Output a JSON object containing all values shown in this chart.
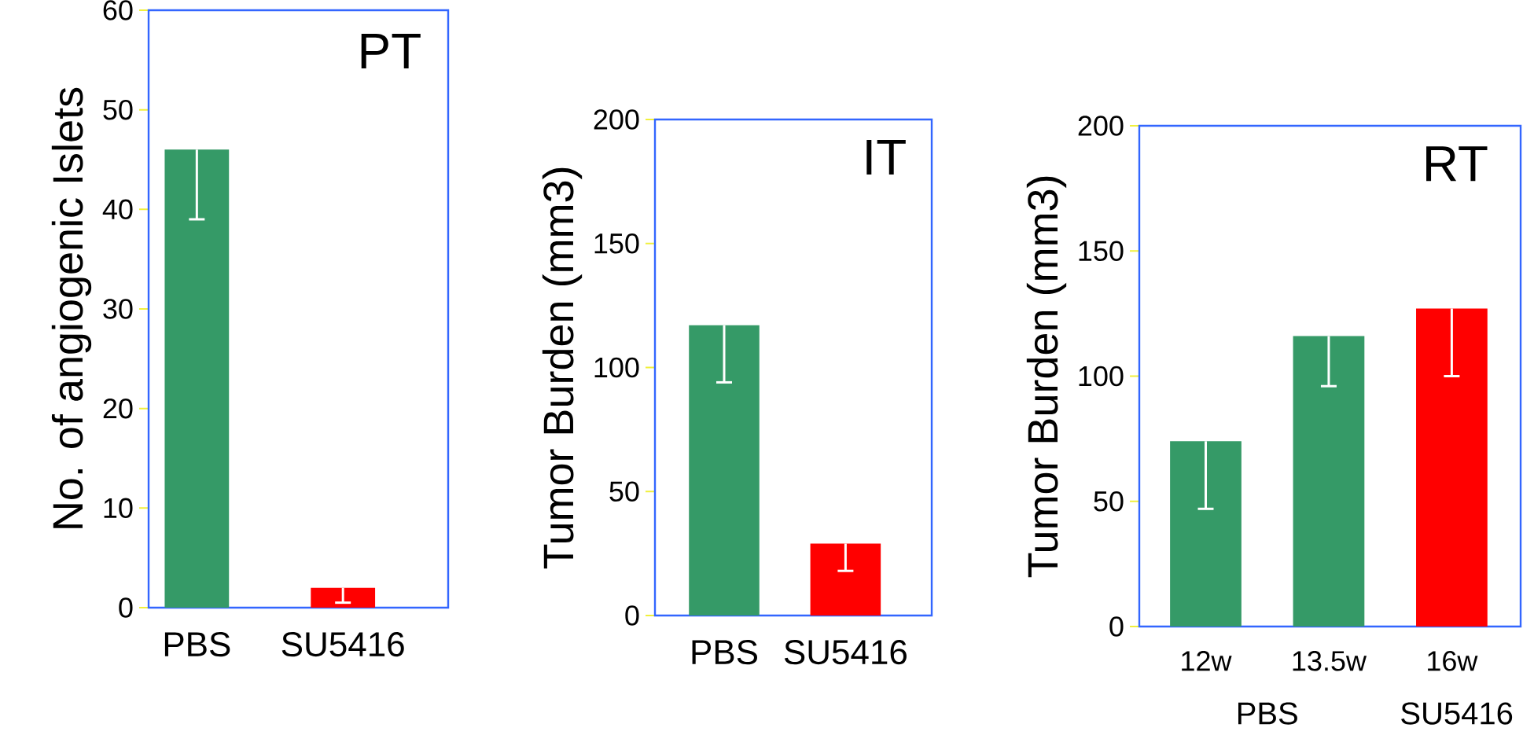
{
  "chart_data": [
    {
      "type": "bar",
      "title": "PT",
      "ylabel": "No. of angiogenic Islets",
      "categories": [
        "PBS",
        "SU5416"
      ],
      "values": [
        46,
        2
      ],
      "colors": [
        "#359a67",
        "#ff0000"
      ],
      "errors": [
        [
          39,
          46
        ],
        [
          0.5,
          2
        ]
      ],
      "ylim": [
        0,
        60
      ],
      "yticks": [
        0,
        10,
        20,
        30,
        40,
        50,
        60
      ]
    },
    {
      "type": "bar",
      "title": "IT",
      "ylabel": "Tumor Burden (mm3)",
      "categories": [
        "PBS",
        "SU5416"
      ],
      "values": [
        117,
        29
      ],
      "colors": [
        "#359a67",
        "#ff0000"
      ],
      "errors": [
        [
          94,
          117
        ],
        [
          18,
          29
        ]
      ],
      "ylim": [
        0,
        200
      ],
      "yticks": [
        0,
        50,
        100,
        150,
        200
      ]
    },
    {
      "type": "bar",
      "title": "RT",
      "ylabel": "Tumor Burden (mm3)",
      "categories": [
        "12w",
        "13.5w",
        "16w"
      ],
      "values": [
        74,
        116,
        127
      ],
      "colors": [
        "#359a67",
        "#359a67",
        "#ff0000"
      ],
      "errors": [
        [
          47,
          74
        ],
        [
          96,
          116
        ],
        [
          100,
          127
        ]
      ],
      "ylim": [
        0,
        200
      ],
      "yticks": [
        0,
        50,
        100,
        150,
        200
      ],
      "annotations": [
        "PBS",
        "SU5416"
      ]
    }
  ]
}
